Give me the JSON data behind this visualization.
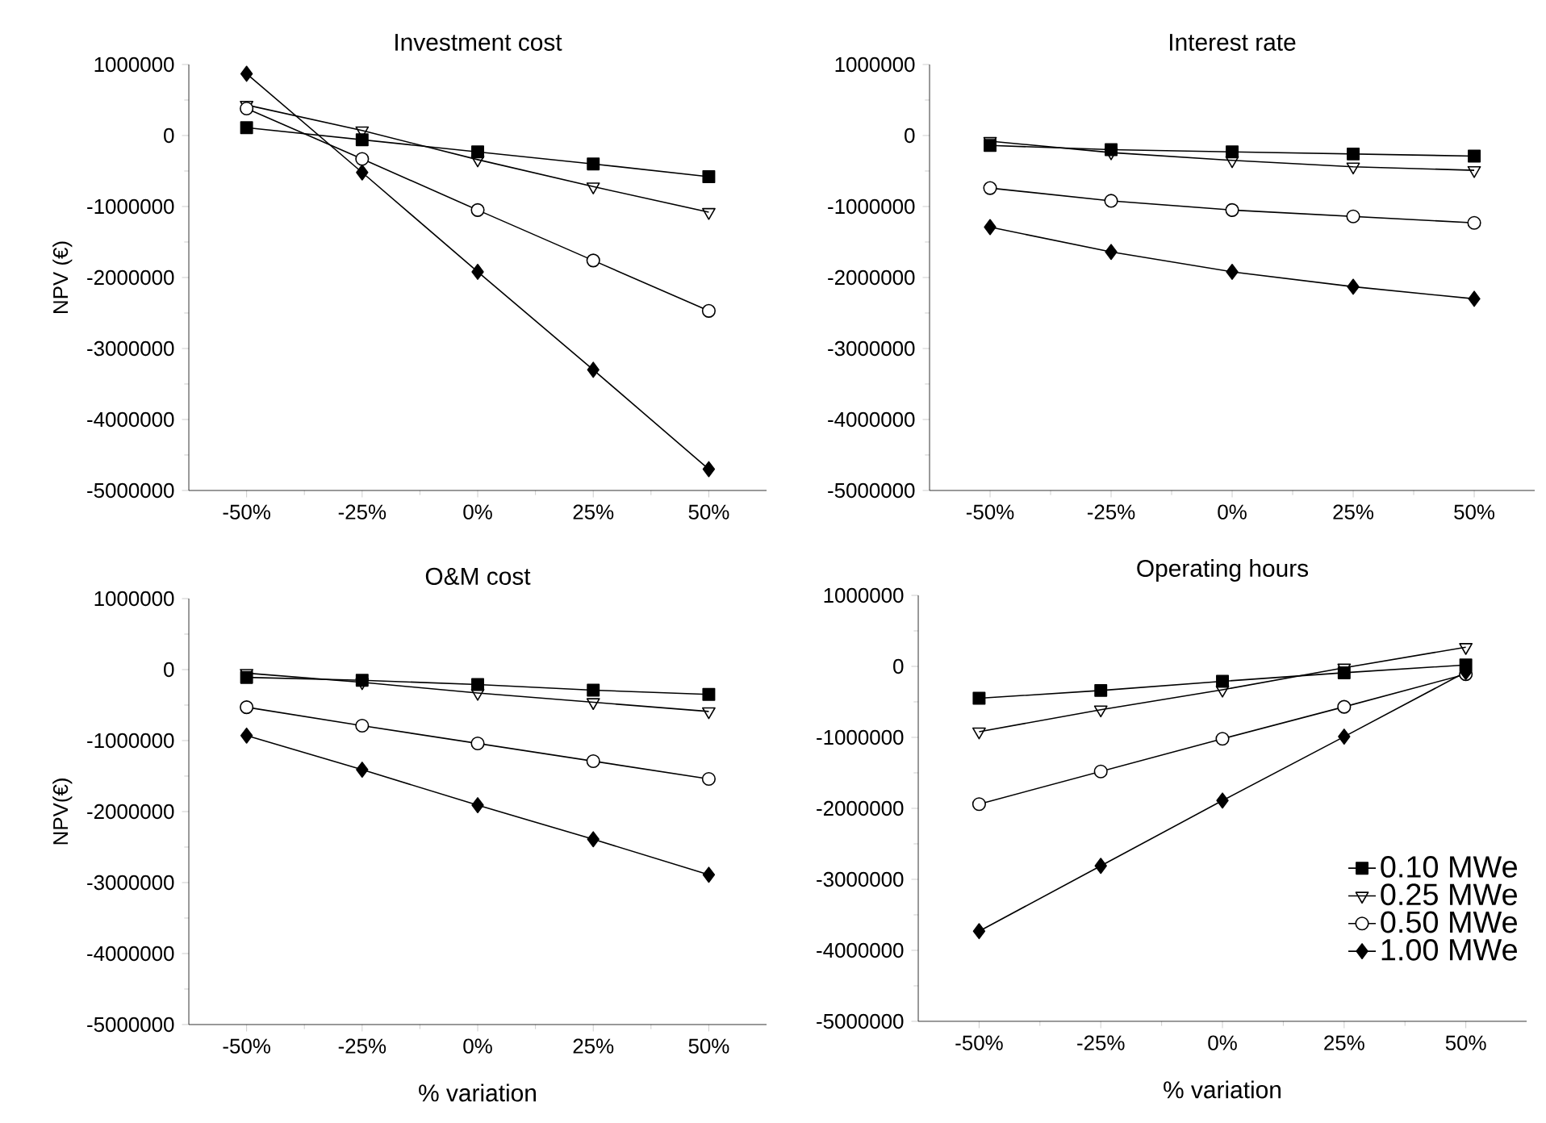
{
  "chart_data": [
    {
      "type": "line",
      "title": "Investment cost",
      "ylabel": "NPV (€)",
      "xlim": [
        -62.5,
        62.5
      ],
      "ylim": [
        -5000000,
        1000000
      ],
      "x": [
        -50,
        -25,
        0,
        25,
        50
      ],
      "xticks": [
        {
          "value": -50,
          "label": "-50%"
        },
        {
          "value": -25,
          "label": "-25%"
        },
        {
          "value": 0,
          "label": "0%"
        },
        {
          "value": 25,
          "label": "25%"
        },
        {
          "value": 50,
          "label": "50%"
        }
      ],
      "yticks": [
        -5000000,
        -4000000,
        -3000000,
        -2000000,
        -1000000,
        0,
        1000000
      ],
      "series": [
        {
          "color": "#000000",
          "marker": "square",
          "values": [
            110000,
            -60000,
            -230000,
            -400000,
            -580000
          ]
        },
        {
          "color": "#000000",
          "marker": "triangle",
          "values": [
            430000,
            70000,
            -340000,
            -720000,
            -1080000
          ]
        },
        {
          "color": "#000000",
          "marker": "circle",
          "values": [
            380000,
            -330000,
            -1050000,
            -1760000,
            -2470000
          ]
        },
        {
          "color": "#000000",
          "marker": "diamond",
          "values": [
            870000,
            -520000,
            -1920000,
            -3300000,
            -4700000
          ]
        }
      ]
    },
    {
      "type": "line",
      "title": "Interest rate",
      "xlim": [
        -62.5,
        62.5
      ],
      "ylim": [
        -5000000,
        1000000
      ],
      "x": [
        -50,
        -25,
        0,
        25,
        50
      ],
      "xticks": [
        {
          "value": -50,
          "label": "-50%"
        },
        {
          "value": -25,
          "label": "-25%"
        },
        {
          "value": 0,
          "label": "0%"
        },
        {
          "value": 25,
          "label": "25%"
        },
        {
          "value": 50,
          "label": "50%"
        }
      ],
      "yticks": [
        -5000000,
        -4000000,
        -3000000,
        -2000000,
        -1000000,
        0,
        1000000
      ],
      "series": [
        {
          "color": "#000000",
          "marker": "square",
          "values": [
            -140000,
            -200000,
            -230000,
            -260000,
            -290000
          ]
        },
        {
          "color": "#000000",
          "marker": "triangle",
          "values": [
            -80000,
            -240000,
            -350000,
            -440000,
            -490000
          ]
        },
        {
          "color": "#000000",
          "marker": "circle",
          "values": [
            -740000,
            -920000,
            -1050000,
            -1140000,
            -1230000
          ]
        },
        {
          "color": "#000000",
          "marker": "diamond",
          "values": [
            -1290000,
            -1640000,
            -1920000,
            -2130000,
            -2300000
          ]
        }
      ]
    },
    {
      "type": "line",
      "title": "O&M cost",
      "xlabel": "% variation",
      "ylabel": "NPV(€)",
      "xlim": [
        -62.5,
        62.5
      ],
      "ylim": [
        -5000000,
        1000000
      ],
      "x": [
        -50,
        -25,
        0,
        25,
        50
      ],
      "xticks": [
        {
          "value": -50,
          "label": "-50%"
        },
        {
          "value": -25,
          "label": "-25%"
        },
        {
          "value": 0,
          "label": "0%"
        },
        {
          "value": 25,
          "label": "25%"
        },
        {
          "value": 50,
          "label": "50%"
        }
      ],
      "yticks": [
        -5000000,
        -4000000,
        -3000000,
        -2000000,
        -1000000,
        0,
        1000000
      ],
      "series": [
        {
          "color": "#000000",
          "marker": "square",
          "values": [
            -110000,
            -150000,
            -210000,
            -290000,
            -350000
          ]
        },
        {
          "color": "#000000",
          "marker": "triangle",
          "values": [
            -50000,
            -180000,
            -330000,
            -460000,
            -590000
          ]
        },
        {
          "color": "#000000",
          "marker": "circle",
          "values": [
            -530000,
            -790000,
            -1040000,
            -1290000,
            -1540000
          ]
        },
        {
          "color": "#000000",
          "marker": "diamond",
          "values": [
            -930000,
            -1410000,
            -1910000,
            -2390000,
            -2890000
          ]
        }
      ]
    },
    {
      "type": "line",
      "title": "Operating hours",
      "xlabel": "% variation",
      "xlim": [
        -62.5,
        62.5
      ],
      "ylim": [
        -5000000,
        1000000
      ],
      "legend": "bottom right",
      "x": [
        -50,
        -25,
        0,
        25,
        50
      ],
      "xticks": [
        {
          "value": -50,
          "label": "-50%"
        },
        {
          "value": -25,
          "label": "-25%"
        },
        {
          "value": 0,
          "label": "0%"
        },
        {
          "value": 25,
          "label": "25%"
        },
        {
          "value": 50,
          "label": "50%"
        }
      ],
      "yticks": [
        -5000000,
        -4000000,
        -3000000,
        -2000000,
        -1000000,
        0,
        1000000
      ],
      "series": [
        {
          "name": "0.10 MWe",
          "color": "#000000",
          "marker": "square",
          "values": [
            -450000,
            -340000,
            -210000,
            -90000,
            20000
          ]
        },
        {
          "name": "0.25 MWe",
          "color": "#000000",
          "marker": "triangle",
          "values": [
            -920000,
            -610000,
            -330000,
            -20000,
            270000
          ]
        },
        {
          "name": "0.50 MWe",
          "color": "#000000",
          "marker": "circle",
          "values": [
            -1940000,
            -1480000,
            -1020000,
            -570000,
            -110000
          ]
        },
        {
          "name": "1.00 MWe",
          "color": "#000000",
          "marker": "diamond",
          "values": [
            -3730000,
            -2810000,
            -1890000,
            -990000,
            -80000
          ]
        }
      ]
    }
  ]
}
